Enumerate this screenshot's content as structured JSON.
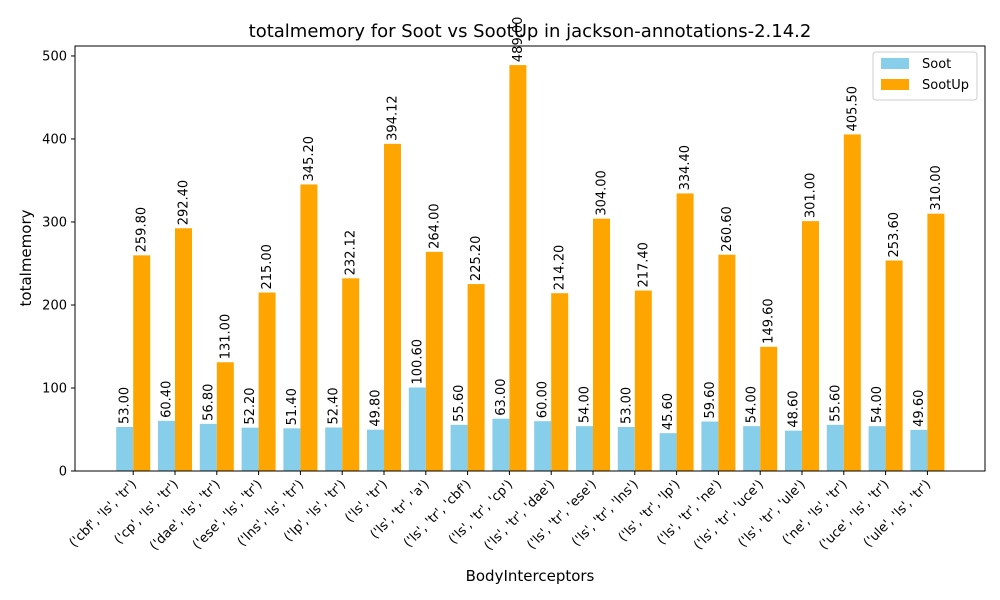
{
  "chart_data": {
    "type": "bar",
    "title": "totalmemory for Soot vs SootUp in jackson-annotations-2.14.2",
    "xlabel": "BodyInterceptors",
    "ylabel": "totalmemory",
    "ylim": [
      0,
      512
    ],
    "yticks": [
      0,
      100,
      200,
      300,
      400,
      500
    ],
    "grid": false,
    "legend_position": "top-right",
    "categories": [
      "('cbf', 'ls', 'tr')",
      "('cp', 'ls', 'tr')",
      "('dae', 'ls', 'tr')",
      "('ese', 'ls', 'tr')",
      "('lns', 'ls', 'tr')",
      "('lp', 'ls', 'tr')",
      "('ls', 'tr')",
      "('ls', 'tr', 'a')",
      "('ls', 'tr', 'cbf')",
      "('ls', 'tr', 'cp')",
      "('ls', 'tr', 'dae')",
      "('ls', 'tr', 'ese')",
      "('ls', 'tr', 'lns')",
      "('ls', 'tr', 'lp')",
      "('ls', 'tr', 'ne')",
      "('ls', 'tr', 'uce')",
      "('ls', 'tr', 'ule')",
      "('ne', 'ls', 'tr')",
      "('uce', 'ls', 'tr')",
      "('ule', 'ls', 'tr')"
    ],
    "series": [
      {
        "name": "Soot",
        "color": "#87ceeb",
        "values": [
          53.0,
          60.4,
          56.8,
          52.2,
          51.4,
          52.4,
          49.8,
          100.6,
          55.6,
          63.0,
          60.0,
          54.0,
          53.0,
          45.6,
          59.6,
          54.0,
          48.6,
          55.6,
          54.0,
          49.6
        ]
      },
      {
        "name": "SootUp",
        "color": "#ffa500",
        "values": [
          259.8,
          292.4,
          131.0,
          215.0,
          345.2,
          232.12,
          394.12,
          264.0,
          225.2,
          489.0,
          214.2,
          304.0,
          217.4,
          334.4,
          260.6,
          149.6,
          301.0,
          405.5,
          253.6,
          310.0
        ]
      }
    ]
  }
}
